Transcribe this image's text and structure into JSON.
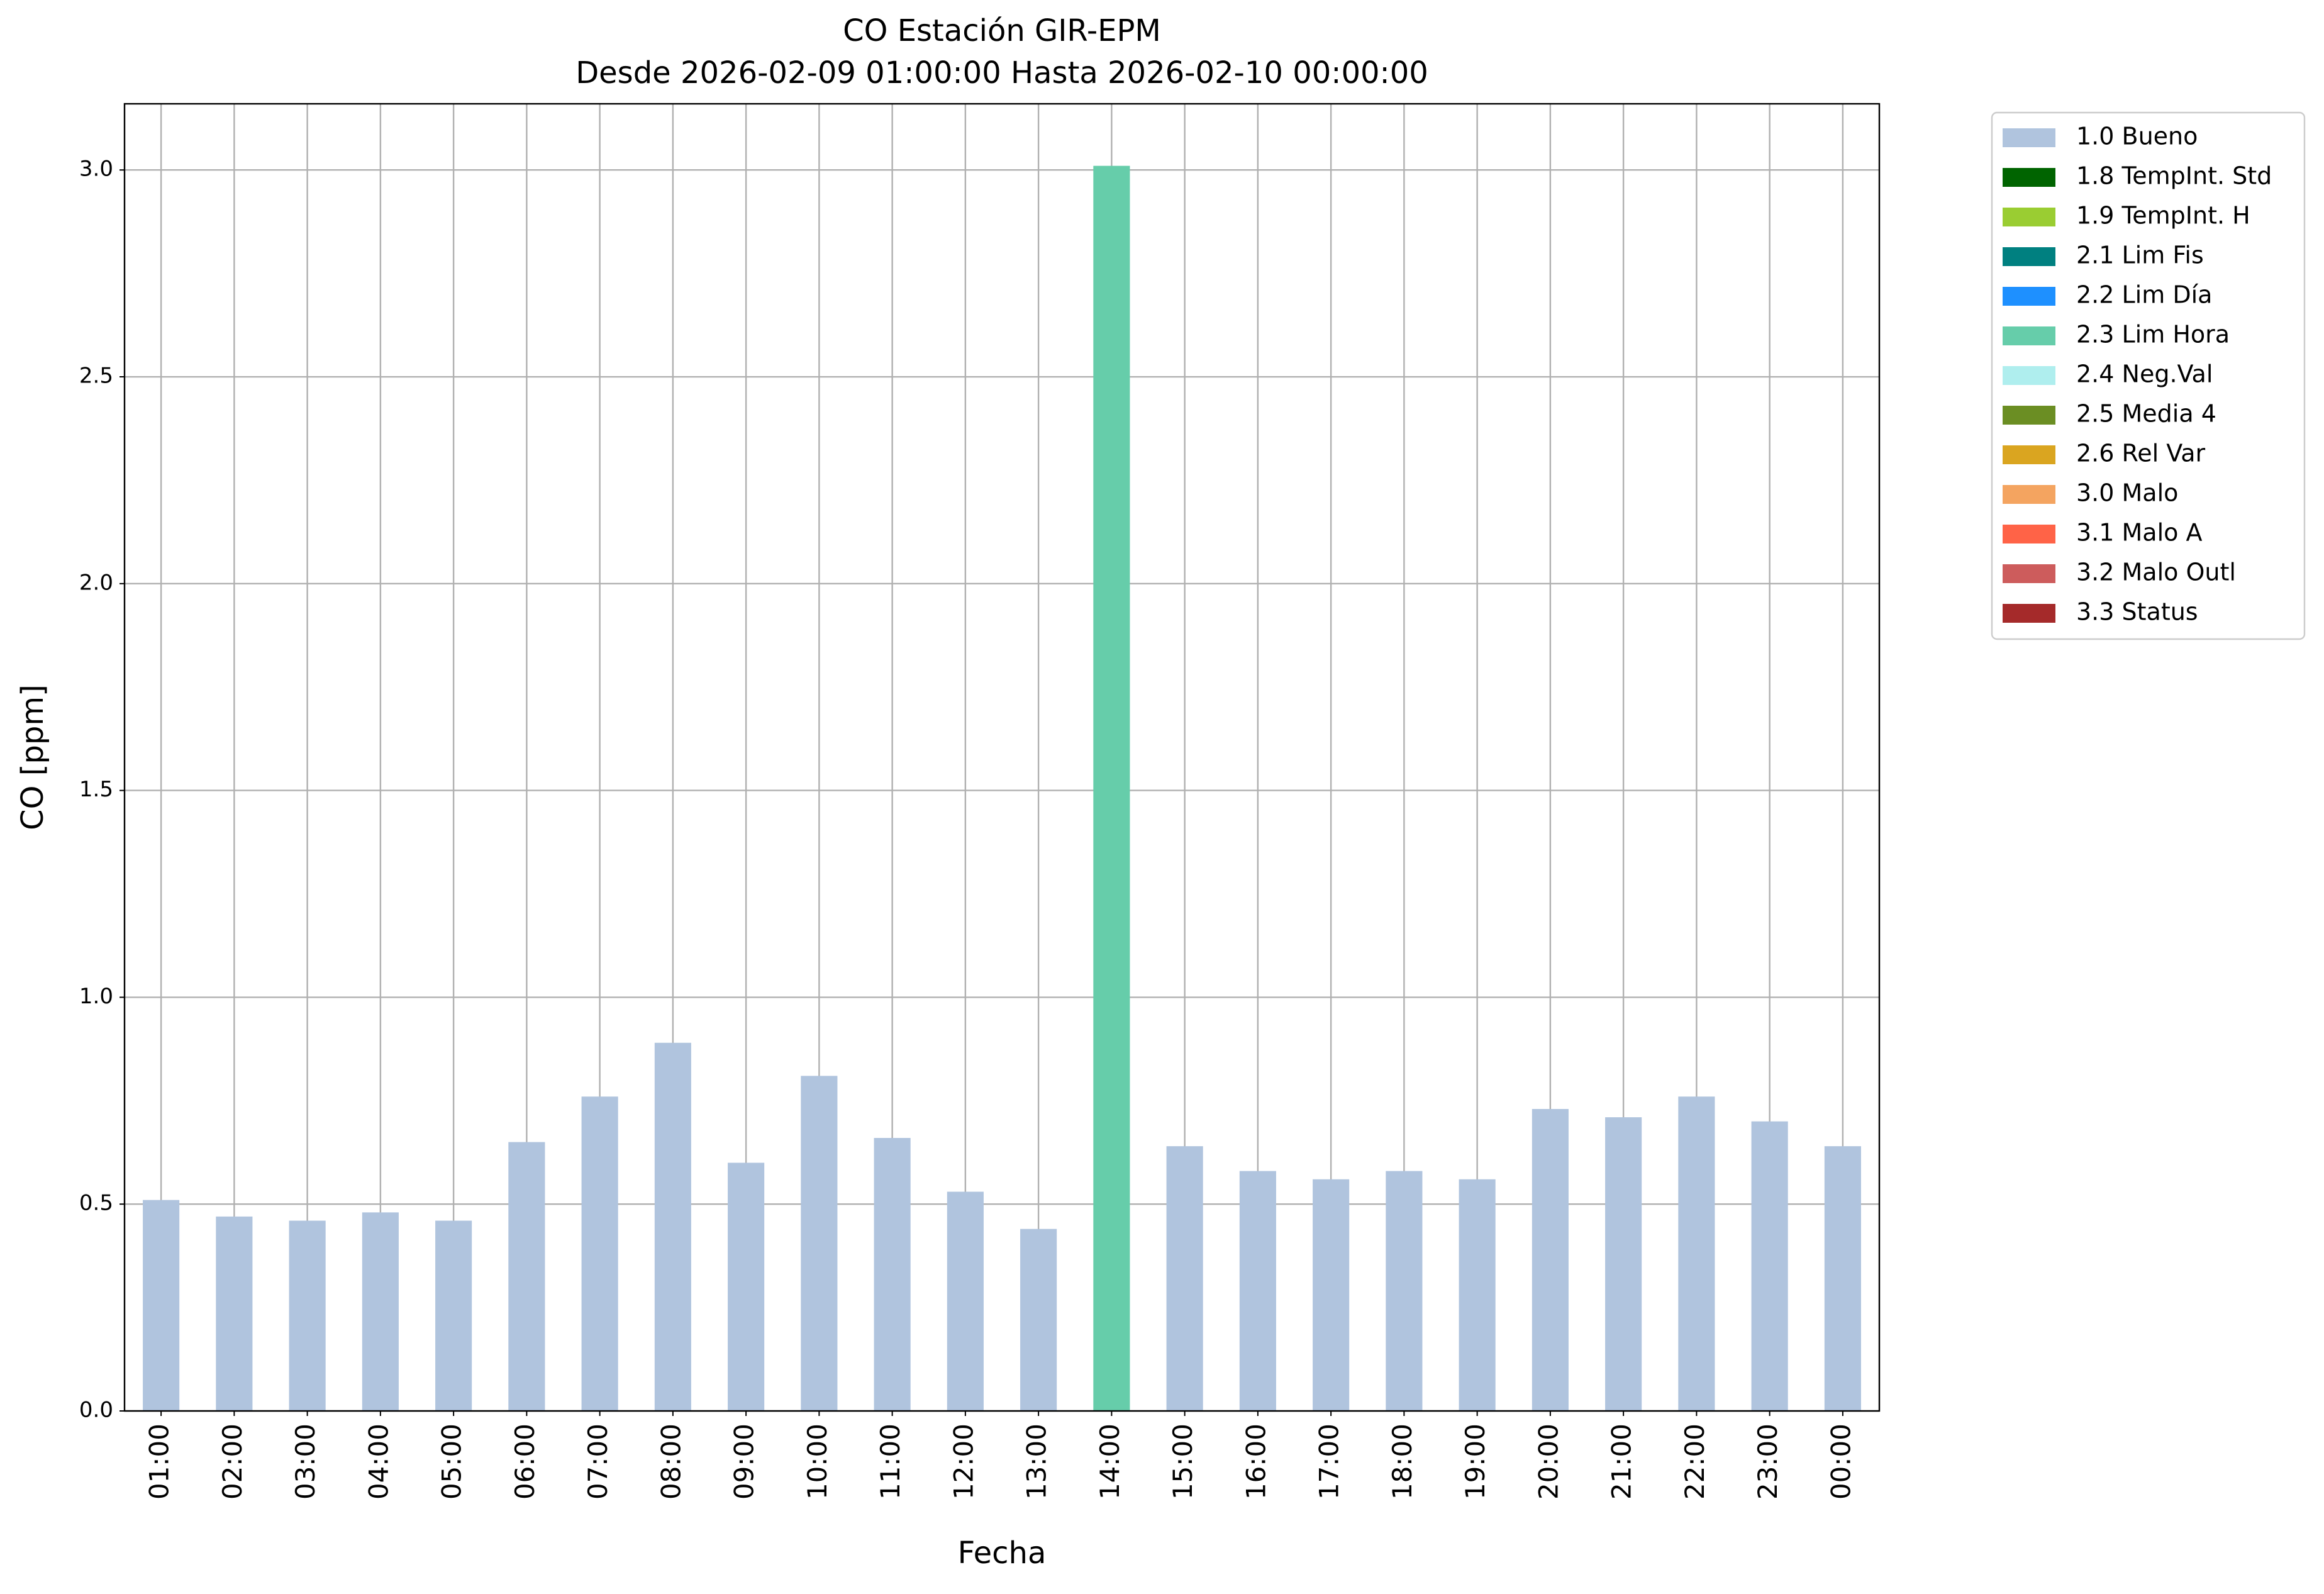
{
  "chart_data": {
    "type": "bar",
    "stacked": true,
    "title": "CO Estación GIR-EPM",
    "subtitle": "Desde 2026-02-09 01:00:00 Hasta 2026-02-10 00:00:00",
    "x_label": "Fecha",
    "y_label": "CO [ppm]",
    "categories": [
      "01:00",
      "02:00",
      "03:00",
      "04:00",
      "05:00",
      "06:00",
      "07:00",
      "08:00",
      "09:00",
      "10:00",
      "11:00",
      "12:00",
      "13:00",
      "14:00",
      "15:00",
      "16:00",
      "17:00",
      "18:00",
      "19:00",
      "20:00",
      "21:00",
      "22:00",
      "23:00",
      "00:00"
    ],
    "ylim": [
      0,
      3.16
    ],
    "yticks": [
      {
        "value": 0,
        "label": "0.0"
      },
      {
        "value": 0.5,
        "label": "0.5"
      },
      {
        "value": 1,
        "label": "1.0"
      },
      {
        "value": 1.5,
        "label": "1.5"
      },
      {
        "value": 2,
        "label": "2.0"
      },
      {
        "value": 2.5,
        "label": "2.5"
      },
      {
        "value": 3,
        "label": "3.0"
      }
    ],
    "grid": true,
    "legend": "outside-right",
    "series": [
      {
        "name": "1.0 Bueno",
        "color": "#b0c4de",
        "values": [
          0.51,
          0.47,
          0.46,
          0.48,
          0.46,
          0.65,
          0.76,
          0.89,
          0.6,
          0.81,
          0.66,
          0.53,
          0.44,
          null,
          0.64,
          0.58,
          0.56,
          0.58,
          0.56,
          0.73,
          0.71,
          0.76,
          0.7,
          0.64
        ]
      },
      {
        "name": "1.8 TempInt. Std",
        "color": "#006400",
        "values": [
          null,
          null,
          null,
          null,
          null,
          null,
          null,
          null,
          null,
          null,
          null,
          null,
          null,
          null,
          null,
          null,
          null,
          null,
          null,
          null,
          null,
          null,
          null,
          null
        ]
      },
      {
        "name": "1.9 TempInt. H",
        "color": "#9acd32",
        "values": [
          null,
          null,
          null,
          null,
          null,
          null,
          null,
          null,
          null,
          null,
          null,
          null,
          null,
          null,
          null,
          null,
          null,
          null,
          null,
          null,
          null,
          null,
          null,
          null
        ]
      },
      {
        "name": "2.1 Lim Fis",
        "color": "#008080",
        "values": [
          null,
          null,
          null,
          null,
          null,
          null,
          null,
          null,
          null,
          null,
          null,
          null,
          null,
          null,
          null,
          null,
          null,
          null,
          null,
          null,
          null,
          null,
          null,
          null
        ]
      },
      {
        "name": "2.2 Lim Día",
        "color": "#1e90ff",
        "values": [
          null,
          null,
          null,
          null,
          null,
          null,
          null,
          null,
          null,
          null,
          null,
          null,
          null,
          null,
          null,
          null,
          null,
          null,
          null,
          null,
          null,
          null,
          null,
          null
        ]
      },
      {
        "name": "2.3 Lim Hora",
        "color": "#66cdaa",
        "values": [
          null,
          null,
          null,
          null,
          null,
          null,
          null,
          null,
          null,
          null,
          null,
          null,
          null,
          3.01,
          null,
          null,
          null,
          null,
          null,
          null,
          null,
          null,
          null,
          null
        ]
      },
      {
        "name": "2.4 Neg.Val",
        "color": "#afeeee",
        "values": [
          null,
          null,
          null,
          null,
          null,
          null,
          null,
          null,
          null,
          null,
          null,
          null,
          null,
          null,
          null,
          null,
          null,
          null,
          null,
          null,
          null,
          null,
          null,
          null
        ]
      },
      {
        "name": "2.5 Media 4",
        "color": "#6b8e23",
        "values": [
          null,
          null,
          null,
          null,
          null,
          null,
          null,
          null,
          null,
          null,
          null,
          null,
          null,
          null,
          null,
          null,
          null,
          null,
          null,
          null,
          null,
          null,
          null,
          null
        ]
      },
      {
        "name": "2.6 Rel Var",
        "color": "#daa520",
        "values": [
          null,
          null,
          null,
          null,
          null,
          null,
          null,
          null,
          null,
          null,
          null,
          null,
          null,
          null,
          null,
          null,
          null,
          null,
          null,
          null,
          null,
          null,
          null,
          null
        ]
      },
      {
        "name": "3.0 Malo",
        "color": "#f4a460",
        "values": [
          null,
          null,
          null,
          null,
          null,
          null,
          null,
          null,
          null,
          null,
          null,
          null,
          null,
          null,
          null,
          null,
          null,
          null,
          null,
          null,
          null,
          null,
          null,
          null
        ]
      },
      {
        "name": "3.1 Malo A",
        "color": "#ff6347",
        "values": [
          null,
          null,
          null,
          null,
          null,
          null,
          null,
          null,
          null,
          null,
          null,
          null,
          null,
          null,
          null,
          null,
          null,
          null,
          null,
          null,
          null,
          null,
          null,
          null
        ]
      },
      {
        "name": "3.2 Malo Outl",
        "color": "#cd5c5c",
        "values": [
          null,
          null,
          null,
          null,
          null,
          null,
          null,
          null,
          null,
          null,
          null,
          null,
          null,
          null,
          null,
          null,
          null,
          null,
          null,
          null,
          null,
          null,
          null,
          null
        ]
      },
      {
        "name": "3.3 Status",
        "color": "#a52a2a",
        "values": [
          null,
          null,
          null,
          null,
          null,
          null,
          null,
          null,
          null,
          null,
          null,
          null,
          null,
          null,
          null,
          null,
          null,
          null,
          null,
          null,
          null,
          null,
          null,
          null
        ]
      }
    ]
  }
}
